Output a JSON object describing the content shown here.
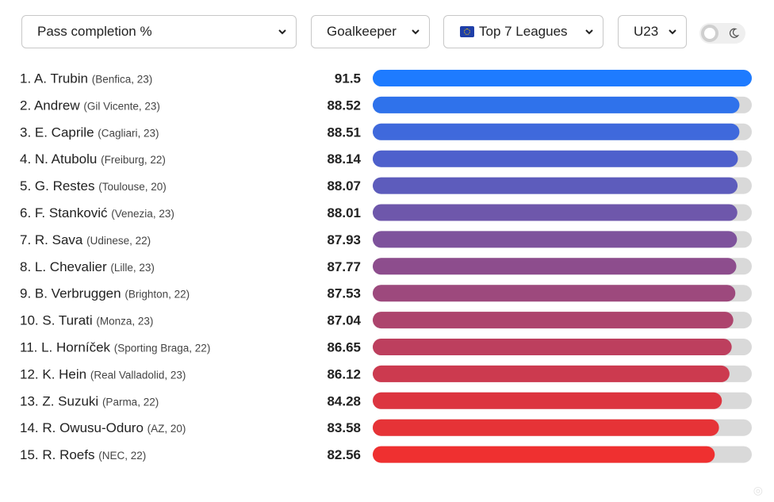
{
  "filters": {
    "metric": "Pass completion %",
    "position": "Goalkeeper",
    "league": "Top 7 Leagues",
    "age": "U23"
  },
  "icons": {
    "league_flag": "eu-flag-icon",
    "theme_light": "sun-circle-icon",
    "theme_dark": "moon-icon"
  },
  "colors": {
    "track": "#d9d9d9",
    "gradient_top": "#1e7bff",
    "gradient_bottom": "#ef3030"
  },
  "chart_data": {
    "type": "bar",
    "orientation": "horizontal",
    "title": "",
    "xlabel": "",
    "ylabel": "",
    "xlim": [
      0,
      91.5
    ],
    "grid": false,
    "rows": [
      {
        "rank": "1.",
        "name": "A. Trubin",
        "meta": "(Benfica, 23)",
        "value_label": "91.5",
        "value": 91.5,
        "color": "#1e7bff"
      },
      {
        "rank": "2.",
        "name": "Andrew",
        "meta": "(Gil Vicente, 23)",
        "value_label": "88.52",
        "value": 88.52,
        "color": "#2f72eb"
      },
      {
        "rank": "3.",
        "name": "E. Caprile",
        "meta": "(Cagliari, 23)",
        "value_label": "88.51",
        "value": 88.51,
        "color": "#3f69dc"
      },
      {
        "rank": "4.",
        "name": "N. Atubolu",
        "meta": "(Freiburg, 22)",
        "value_label": "88.14",
        "value": 88.14,
        "color": "#4e60cc"
      },
      {
        "rank": "5.",
        "name": "G. Restes",
        "meta": "(Toulouse, 20)",
        "value_label": "88.07",
        "value": 88.07,
        "color": "#5d5cbc"
      },
      {
        "rank": "6.",
        "name": "F. Stanković",
        "meta": "(Venezia, 23)",
        "value_label": "88.01",
        "value": 88.01,
        "color": "#6e57ab"
      },
      {
        "rank": "7.",
        "name": "R. Sava",
        "meta": "(Udinese, 22)",
        "value_label": "87.93",
        "value": 87.93,
        "color": "#7e529c"
      },
      {
        "rank": "8.",
        "name": "L. Chevalier",
        "meta": "(Lille, 23)",
        "value_label": "87.77",
        "value": 87.77,
        "color": "#8d4d8d"
      },
      {
        "rank": "9.",
        "name": "B. Verbruggen",
        "meta": "(Brighton, 22)",
        "value_label": "87.53",
        "value": 87.53,
        "color": "#9d497d"
      },
      {
        "rank": "10.",
        "name": "S. Turati",
        "meta": "(Monza, 23)",
        "value_label": "87.04",
        "value": 87.04,
        "color": "#ad446d"
      },
      {
        "rank": "11.",
        "name": "L. Horníček",
        "meta": "(Sporting Braga, 22)",
        "value_label": "86.65",
        "value": 86.65,
        "color": "#bd3f5e"
      },
      {
        "rank": "12.",
        "name": "K. Hein",
        "meta": "(Real Valladolid, 23)",
        "value_label": "86.12",
        "value": 86.12,
        "color": "#cc3a4f"
      },
      {
        "rank": "13.",
        "name": "Z. Suzuki",
        "meta": "(Parma, 22)",
        "value_label": "84.28",
        "value": 84.28,
        "color": "#dc3540"
      },
      {
        "rank": "14.",
        "name": "R. Owusu-Oduro",
        "meta": "(AZ, 20)",
        "value_label": "83.58",
        "value": 83.58,
        "color": "#e63337"
      },
      {
        "rank": "15.",
        "name": "R. Roefs",
        "meta": "(NEC, 22)",
        "value_label": "82.56",
        "value": 82.56,
        "color": "#ef3030"
      }
    ]
  }
}
